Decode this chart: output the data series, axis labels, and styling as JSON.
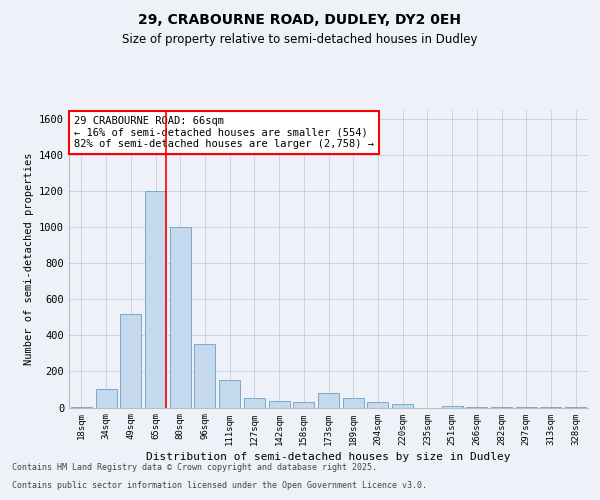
{
  "title1": "29, CRABOURNE ROAD, DUDLEY, DY2 0EH",
  "title2": "Size of property relative to semi-detached houses in Dudley",
  "xlabel": "Distribution of semi-detached houses by size in Dudley",
  "ylabel": "Number of semi-detached properties",
  "categories": [
    "18sqm",
    "34sqm",
    "49sqm",
    "65sqm",
    "80sqm",
    "96sqm",
    "111sqm",
    "127sqm",
    "142sqm",
    "158sqm",
    "173sqm",
    "189sqm",
    "204sqm",
    "220sqm",
    "235sqm",
    "251sqm",
    "266sqm",
    "282sqm",
    "297sqm",
    "313sqm",
    "328sqm"
  ],
  "values": [
    5,
    100,
    520,
    1200,
    1000,
    350,
    150,
    50,
    35,
    30,
    80,
    50,
    30,
    20,
    0,
    10,
    5,
    5,
    2,
    2,
    2
  ],
  "bar_color": "#c5d9ee",
  "bar_edge_color": "#7aaac8",
  "red_line_index": 3,
  "annotation_title": "29 CRABOURNE ROAD: 66sqm",
  "annotation_line1": "← 16% of semi-detached houses are smaller (554)",
  "annotation_line2": "82% of semi-detached houses are larger (2,758) →",
  "ylim": [
    0,
    1650
  ],
  "yticks": [
    0,
    200,
    400,
    600,
    800,
    1000,
    1200,
    1400,
    1600
  ],
  "footer1": "Contains HM Land Registry data © Crown copyright and database right 2025.",
  "footer2": "Contains public sector information licensed under the Open Government Licence v3.0.",
  "bg_color": "#eef2f8",
  "plot_bg_color": "#eef2f8"
}
